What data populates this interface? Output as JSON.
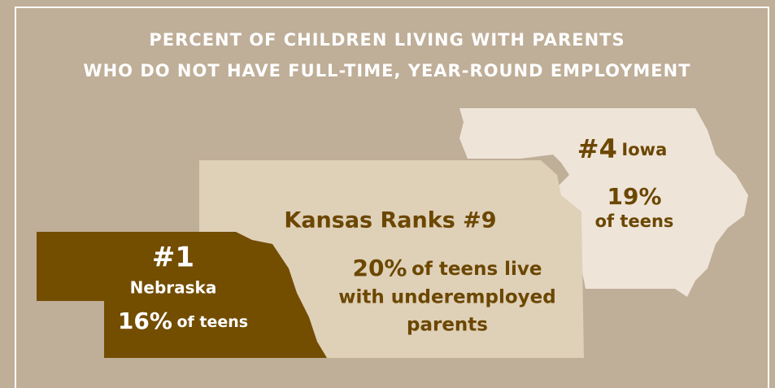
{
  "title": [
    "PERCENT OF CHILDREN LIVING WITH PARENTS",
    "WHO DO NOT HAVE FULL-TIME, YEAR-ROUND EMPLOYMENT"
  ],
  "nebraska": {
    "rank": "#1",
    "name": "Nebraska",
    "percent": "16%",
    "text": "of teens"
  },
  "kansas": {
    "heading": "Kansas Ranks #9",
    "percent": "20%",
    "lines": [
      "of teens live",
      "with underemployed",
      "parents"
    ]
  },
  "iowa": {
    "rank": "#4",
    "name": "Iowa",
    "percent": "19%",
    "text": "of teens"
  }
}
